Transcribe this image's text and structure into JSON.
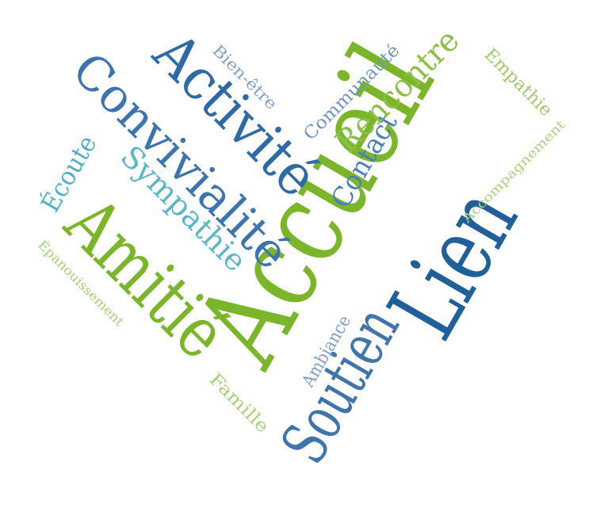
{
  "title": "Word cloud",
  "words": [
    {
      "key": "accueil",
      "text": "Accueil",
      "color": "#7ab52a"
    },
    {
      "key": "lien",
      "text": "Lien",
      "color": "#1f5f9a"
    },
    {
      "key": "soutien",
      "text": "Soutien",
      "color": "#3f74ad"
    },
    {
      "key": "amitie",
      "text": "Amitié",
      "color": "#7ab52a"
    },
    {
      "key": "activite",
      "text": "Activité",
      "color": "#2e6aa8"
    },
    {
      "key": "convivialite",
      "text": "Convivialité",
      "color": "#3d74b0"
    },
    {
      "key": "sympathie",
      "text": "Sympathie",
      "color": "#5bb7c7"
    },
    {
      "key": "ecoute",
      "text": "Écoute",
      "color": "#4fb0c4"
    },
    {
      "key": "contact",
      "text": "Contact",
      "color": "#4b7fb8"
    },
    {
      "key": "rencontre",
      "text": "Rencontre",
      "color": "#8cc044"
    },
    {
      "key": "communaute",
      "text": "Communauté",
      "color": "#6e95c2"
    },
    {
      "key": "bien_etre",
      "text": "Bien-être",
      "color": "#7f9fcb"
    },
    {
      "key": "empathie",
      "text": "Empathie",
      "color": "#9ccc6a"
    },
    {
      "key": "accompagnement",
      "text": "Accompagnement",
      "color": "#a8d27e"
    },
    {
      "key": "epanouissement",
      "text": "Épanouissement",
      "color": "#a6d07a"
    },
    {
      "key": "ambiance",
      "text": "Ambiance",
      "color": "#7f9fcb"
    },
    {
      "key": "famille",
      "text": "Famille",
      "color": "#a6d07a"
    }
  ]
}
